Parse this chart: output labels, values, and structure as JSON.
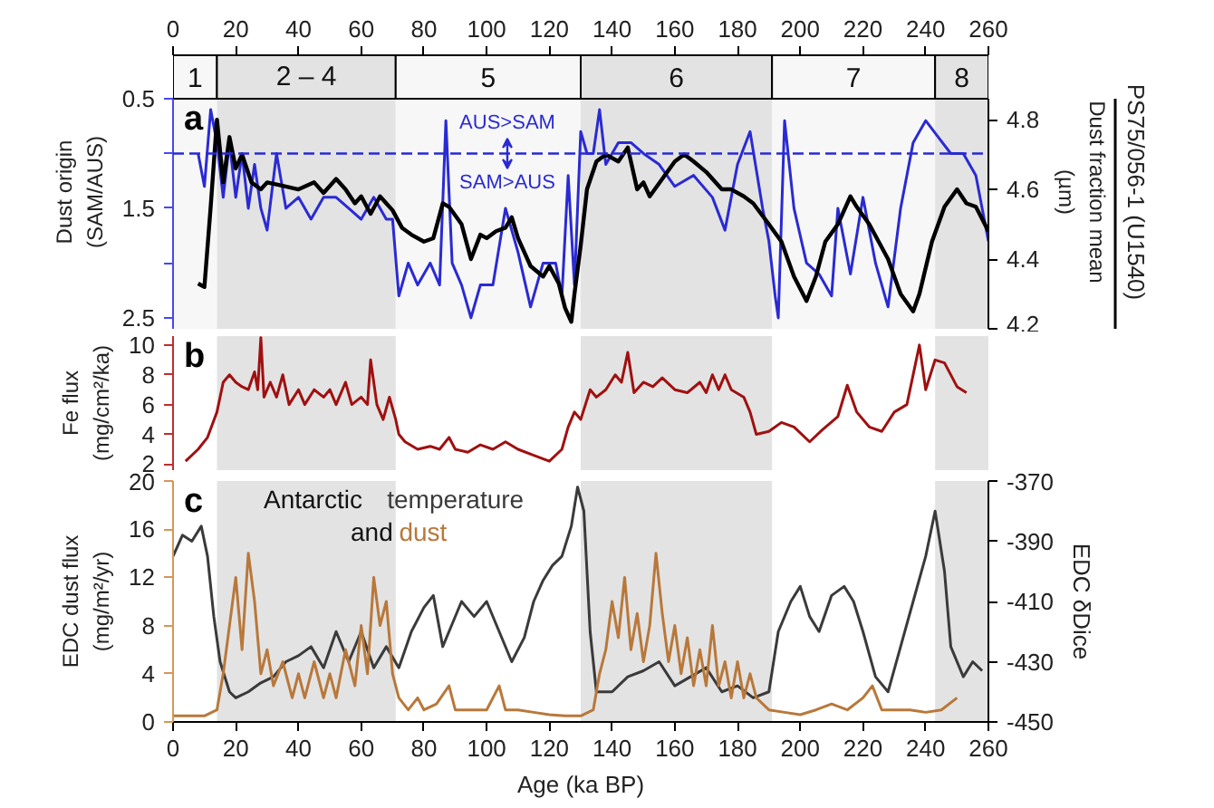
{
  "chart_data": [
    {
      "type": "line",
      "ylabel": "Dust origin (SAM/AUS)",
      "y2label": "Dust fraction mean (µm)",
      "xlim": [
        0,
        260
      ],
      "xticks": [
        0,
        20,
        40,
        60,
        80,
        100,
        120,
        140,
        160,
        180,
        200,
        220,
        240,
        260
      ],
      "ylim": [
        2.6,
        0.5
      ],
      "yticks": [
        0.5,
        {
          "value": 1.0,
          "label": null
        },
        1.5,
        {
          "value": 2.0,
          "label": null
        },
        2.5
      ],
      "y2lim": [
        4.2,
        4.86
      ],
      "y2ticks": [
        4.2,
        4.4,
        4.6,
        4.8
      ],
      "bands": [
        {
          "axis": "x",
          "from": 0,
          "to": 14,
          "label": "1",
          "color": "#f7f7f7"
        },
        {
          "axis": "x",
          "from": 14,
          "to": 71,
          "label": "2 – 4",
          "color": "#e3e3e3"
        },
        {
          "axis": "x",
          "from": 71,
          "to": 130,
          "label": "5",
          "color": "#f7f7f7"
        },
        {
          "axis": "x",
          "from": 130,
          "to": 191,
          "label": "6",
          "color": "#e3e3e3"
        },
        {
          "axis": "x",
          "from": 191,
          "to": 243,
          "label": "7",
          "color": "#f7f7f7"
        },
        {
          "axis": "x",
          "from": 243,
          "to": 260,
          "label": "8",
          "color": "#e3e3e3"
        }
      ],
      "ref_lines": [
        {
          "axis": "y",
          "value": 1.0,
          "color": "#2a2ad4",
          "line_style": "dashed"
        }
      ],
      "annotations": [
        "a",
        "AUS>SAM",
        "SAM>AUS",
        "PS75/056-1 (U1540)"
      ],
      "series": [
        {
          "color": "#2a2ad4",
          "x": [
            8,
            10,
            12,
            14,
            16,
            18,
            20,
            22,
            24,
            26,
            28,
            30,
            33,
            36,
            40,
            44,
            48,
            52,
            56,
            60,
            64,
            68,
            70,
            72,
            75,
            78,
            82,
            85,
            87,
            89,
            92,
            95,
            98,
            102,
            106,
            110,
            114,
            118,
            122,
            124,
            126,
            128,
            130,
            132,
            134,
            136,
            138,
            142,
            146,
            150,
            155,
            160,
            166,
            172,
            176,
            180,
            184,
            188,
            190,
            192,
            193,
            195,
            198,
            202,
            206,
            210,
            212,
            216,
            220,
            224,
            228,
            232,
            236,
            240,
            244,
            248,
            252,
            256,
            260
          ],
          "values": [
            1.0,
            1.3,
            0.6,
            0.9,
            1.4,
            0.9,
            1.4,
            1.0,
            1.5,
            1.1,
            1.5,
            1.7,
            1.0,
            1.5,
            1.4,
            1.6,
            1.4,
            1.4,
            1.5,
            1.6,
            1.4,
            1.6,
            1.6,
            2.3,
            2.0,
            2.2,
            2.0,
            2.2,
            0.7,
            2.0,
            2.2,
            2.5,
            2.2,
            2.2,
            1.5,
            1.9,
            2.4,
            2.0,
            2.0,
            2.3,
            1.2,
            2.2,
            0.8,
            1.0,
            1.0,
            0.6,
            1.1,
            0.9,
            0.9,
            1.0,
            1.1,
            1.3,
            1.2,
            1.4,
            1.7,
            1.1,
            0.8,
            1.5,
            1.8,
            2.3,
            2.5,
            0.7,
            1.5,
            2.0,
            2.1,
            2.3,
            1.5,
            2.1,
            1.4,
            2.0,
            2.4,
            1.5,
            0.9,
            0.7,
            0.85,
            1.0,
            1.0,
            1.2,
            1.8
          ]
        },
        {
          "color": "#000000",
          "axis": "y2",
          "x": [
            8,
            10,
            12,
            14,
            16,
            18,
            20,
            22,
            25,
            28,
            30,
            35,
            40,
            45,
            48,
            52,
            55,
            58,
            60,
            63,
            66,
            68,
            70,
            73,
            76,
            80,
            83,
            86,
            88,
            92,
            95,
            98,
            100,
            103,
            106,
            108,
            110,
            114,
            118,
            120,
            123,
            125,
            127,
            128,
            130,
            132,
            135,
            138,
            142,
            145,
            148,
            150,
            152,
            156,
            160,
            163,
            166,
            170,
            175,
            178,
            182,
            185,
            190,
            194,
            198,
            202,
            205,
            208,
            212,
            216,
            218,
            222,
            225,
            228,
            232,
            236,
            238,
            242,
            246,
            250,
            253,
            256,
            260
          ],
          "values": [
            4.33,
            4.32,
            4.55,
            4.8,
            4.62,
            4.75,
            4.66,
            4.7,
            4.62,
            4.6,
            4.62,
            4.61,
            4.6,
            4.62,
            4.59,
            4.63,
            4.6,
            4.56,
            4.58,
            4.53,
            4.58,
            4.56,
            4.54,
            4.49,
            4.47,
            4.45,
            4.46,
            4.56,
            4.55,
            4.5,
            4.4,
            4.47,
            4.46,
            4.48,
            4.49,
            4.52,
            4.46,
            4.38,
            4.35,
            4.38,
            4.33,
            4.26,
            4.22,
            4.3,
            4.44,
            4.6,
            4.68,
            4.7,
            4.68,
            4.72,
            4.6,
            4.62,
            4.58,
            4.63,
            4.68,
            4.7,
            4.68,
            4.65,
            4.6,
            4.6,
            4.58,
            4.56,
            4.5,
            4.45,
            4.35,
            4.28,
            4.35,
            4.45,
            4.5,
            4.58,
            4.55,
            4.5,
            4.45,
            4.4,
            4.3,
            4.25,
            4.3,
            4.45,
            4.55,
            4.6,
            4.56,
            4.55,
            4.48
          ]
        }
      ]
    },
    {
      "type": "line",
      "ylabel": "Fe flux (mg/cm²/ka)",
      "xlim": [
        0,
        260
      ],
      "ylim": [
        1.6,
        10.6
      ],
      "yticks": [
        2,
        4,
        6,
        8,
        10
      ],
      "tick_labels": "y",
      "bands": [
        {
          "axis": "x",
          "from": 14,
          "to": 71,
          "color": "#e3e3e3"
        },
        {
          "axis": "x",
          "from": 130,
          "to": 191,
          "color": "#e3e3e3"
        },
        {
          "axis": "x",
          "from": 243,
          "to": 260,
          "color": "#e3e3e3"
        }
      ],
      "annotations": [
        "b"
      ],
      "series": [
        {
          "color": "#a01010",
          "x": [
            4,
            8,
            11,
            14,
            16,
            18,
            20,
            22,
            24,
            26,
            27,
            28,
            29,
            31,
            33,
            35,
            37,
            40,
            42,
            45,
            48,
            50,
            52,
            55,
            57,
            60,
            62,
            63,
            65,
            67,
            69,
            71,
            72,
            74,
            78,
            82,
            85,
            88,
            90,
            94,
            98,
            102,
            106,
            110,
            115,
            120,
            124,
            126,
            128,
            130,
            133,
            135,
            138,
            141,
            143,
            145,
            147,
            150,
            153,
            156,
            160,
            164,
            168,
            170,
            172,
            174,
            176,
            178,
            182,
            184,
            186,
            190,
            194,
            198,
            203,
            207,
            212,
            215,
            218,
            222,
            226,
            230,
            234,
            238,
            240,
            243,
            246,
            250,
            253
          ],
          "values": [
            2.2,
            3,
            3.8,
            5.5,
            7.5,
            8,
            7.5,
            7.2,
            7,
            8.2,
            7,
            10.5,
            6.5,
            7.5,
            6.5,
            8,
            6,
            7,
            6,
            7,
            6.5,
            7,
            6,
            7.5,
            6,
            6.5,
            6,
            9,
            6,
            5,
            6.5,
            5,
            4,
            3.5,
            3,
            3.2,
            3,
            3.8,
            3,
            2.8,
            3.3,
            3,
            3.5,
            3,
            2.6,
            2.2,
            3,
            4.5,
            5.5,
            5,
            7,
            6.5,
            7,
            8,
            7.5,
            9.5,
            6.8,
            7.5,
            7.2,
            7.8,
            7,
            6.8,
            7.5,
            6.8,
            8,
            7,
            8,
            7,
            6.5,
            5.5,
            4,
            4.2,
            4.8,
            4.5,
            3.5,
            4.3,
            5.2,
            7.3,
            5.5,
            4.5,
            4.2,
            5.5,
            6,
            10,
            7,
            9,
            8.8,
            7.2,
            6.8
          ]
        }
      ]
    },
    {
      "type": "line",
      "xlabel": "Age (ka BP)",
      "ylabel": "EDC dust flux (mg/m²/yr)",
      "y2label": "EDC δDice",
      "xlim": [
        0,
        260
      ],
      "xticks": [
        0,
        20,
        40,
        60,
        80,
        100,
        120,
        140,
        160,
        180,
        200,
        220,
        240,
        260
      ],
      "ylim": [
        0,
        20
      ],
      "yticks": [
        0,
        4,
        8,
        12,
        16,
        20
      ],
      "y2lim": [
        -450,
        -370
      ],
      "y2ticks": [
        -450,
        -430,
        -410,
        -390,
        -370
      ],
      "legend": "top left",
      "bands": [
        {
          "axis": "x",
          "from": 14,
          "to": 71,
          "color": "#e3e3e3"
        },
        {
          "axis": "x",
          "from": 130,
          "to": 191,
          "color": "#e3e3e3"
        },
        {
          "axis": "x",
          "from": 243,
          "to": 260,
          "color": "#e3e3e3"
        }
      ],
      "annotations": [
        "c",
        "Antarctic",
        "and"
      ],
      "series": [
        {
          "name": "temperature",
          "color": "#3a3a3a",
          "axis": "y2",
          "x": [
            0,
            3,
            6,
            9,
            11,
            13,
            15,
            18,
            20,
            24,
            28,
            32,
            36,
            40,
            44,
            48,
            52,
            56,
            60,
            64,
            68,
            72,
            76,
            80,
            83,
            86,
            88,
            92,
            96,
            100,
            104,
            108,
            112,
            115,
            118,
            121,
            124,
            127,
            129,
            131,
            133,
            135,
            140,
            145,
            150,
            155,
            160,
            165,
            170,
            175,
            180,
            185,
            190,
            193,
            197,
            200,
            203,
            206,
            210,
            214,
            217,
            220,
            224,
            228,
            232,
            236,
            240,
            243,
            246,
            248,
            252,
            255,
            258
          ],
          "values": [
            -395,
            -388,
            -390,
            -385,
            -395,
            -415,
            -430,
            -440,
            -442,
            -440,
            -437,
            -435,
            -430,
            -428,
            -425,
            -432,
            -420,
            -430,
            -420,
            -432,
            -425,
            -432,
            -420,
            -412,
            -408,
            -425,
            -420,
            -410,
            -415,
            -410,
            -420,
            -430,
            -422,
            -410,
            -403,
            -398,
            -395,
            -385,
            -372,
            -380,
            -420,
            -440,
            -440,
            -435,
            -433,
            -430,
            -438,
            -435,
            -432,
            -440,
            -438,
            -442,
            -440,
            -420,
            -410,
            -405,
            -415,
            -420,
            -408,
            -405,
            -410,
            -420,
            -435,
            -440,
            -425,
            -410,
            -395,
            -380,
            -400,
            -425,
            -435,
            -430,
            -433
          ]
        },
        {
          "name": "dust",
          "color": "#b8783a",
          "x": [
            0,
            10,
            14,
            16,
            18,
            20,
            22,
            24,
            26,
            28,
            30,
            32,
            35,
            38,
            40,
            42,
            45,
            48,
            50,
            52,
            55,
            58,
            60,
            62,
            64,
            66,
            68,
            70,
            72,
            75,
            78,
            80,
            84,
            88,
            90,
            95,
            100,
            104,
            106,
            110,
            115,
            120,
            125,
            130,
            134,
            136,
            138,
            140,
            142,
            144,
            146,
            148,
            150,
            152,
            154,
            156,
            158,
            160,
            162,
            164,
            166,
            168,
            170,
            172,
            174,
            176,
            178,
            180,
            182,
            184,
            186,
            190,
            195,
            200,
            205,
            210,
            215,
            220,
            223,
            226,
            230,
            235,
            240,
            245,
            250
          ],
          "values": [
            0.5,
            0.5,
            1,
            4,
            8,
            12,
            6,
            14,
            10,
            4,
            6,
            3,
            5,
            2,
            4,
            2,
            5,
            2,
            4,
            2,
            6,
            3,
            8,
            4,
            12,
            8,
            10,
            4,
            2,
            1,
            2,
            1,
            1.5,
            3,
            1,
            1,
            1,
            3,
            1,
            1,
            0.8,
            0.6,
            0.5,
            0.5,
            1,
            4,
            6,
            10,
            7,
            12,
            6,
            9,
            5,
            8,
            14,
            9,
            5,
            8,
            4,
            7,
            3,
            6,
            3,
            8,
            3,
            5,
            2,
            5,
            2,
            4,
            2,
            1,
            0.8,
            0.6,
            1,
            1.5,
            1,
            2,
            3,
            1,
            1,
            1,
            0.8,
            1,
            2
          ]
        }
      ]
    }
  ]
}
